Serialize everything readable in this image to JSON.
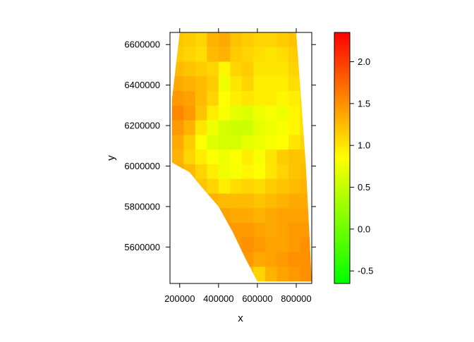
{
  "chart_data": {
    "type": "heatmap",
    "title": "",
    "xlabel": "x",
    "ylabel": "y",
    "xlim": [
      150000,
      880000
    ],
    "ylim": [
      5420000,
      6660000
    ],
    "x_ticks": [
      200000,
      400000,
      600000,
      800000
    ],
    "x_tick_labels": [
      "200000",
      "400000",
      "600000",
      "800000"
    ],
    "y_ticks": [
      5600000,
      5800000,
      6000000,
      6200000,
      6400000,
      6600000
    ],
    "y_tick_labels": [
      "5600000",
      "5800000",
      "6000000",
      "6200000",
      "6400000",
      "6600000"
    ],
    "colorbar": {
      "range": [
        -0.65,
        2.35
      ],
      "ticks": [
        -0.5,
        0.0,
        0.5,
        1.0,
        1.5,
        2.0
      ],
      "tick_labels": [
        "-0.5",
        "0.0",
        "0.5",
        "1.0",
        "1.5",
        "2.0"
      ],
      "colors": [
        "#00ff00",
        "#ffff00",
        "#ff0000"
      ]
    },
    "region_outline": [
      [
        200000,
        6660000
      ],
      [
        800000,
        6660000
      ],
      [
        850000,
        6000000
      ],
      [
        880000,
        5430000
      ],
      [
        600000,
        5430000
      ],
      [
        540000,
        5540000
      ],
      [
        470000,
        5680000
      ],
      [
        400000,
        5800000
      ],
      [
        310000,
        5900000
      ],
      [
        250000,
        5970000
      ],
      [
        155000,
        6020000
      ],
      [
        160000,
        6330000
      ]
    ],
    "grid": {
      "x_start": 160000,
      "x_end": 880000,
      "y_start": 5430000,
      "y_end": 6660000,
      "columns": 12,
      "rows": 17,
      "values": [
        [
          1.2,
          1.15,
          1.1,
          1.3,
          1.35,
          1.2,
          1.15,
          1.1,
          1.1,
          1.15,
          1.2,
          1.2
        ],
        [
          1.15,
          1.1,
          1.05,
          1.25,
          1.3,
          1.15,
          1.1,
          1.05,
          1.0,
          1.05,
          1.15,
          1.2
        ],
        [
          1.25,
          1.2,
          1.15,
          1.1,
          0.9,
          1.1,
          1.15,
          1.0,
          1.0,
          1.0,
          1.1,
          1.15
        ],
        [
          1.35,
          1.3,
          1.25,
          1.15,
          0.75,
          1.0,
          1.1,
          0.95,
          0.95,
          0.95,
          1.05,
          1.1
        ],
        [
          1.45,
          1.4,
          1.25,
          1.1,
          0.85,
          0.95,
          1.0,
          0.95,
          0.95,
          0.9,
          0.95,
          1.1
        ],
        [
          1.55,
          1.45,
          1.2,
          0.95,
          0.8,
          0.7,
          0.65,
          0.75,
          0.8,
          0.75,
          0.9,
          1.05
        ],
        [
          1.45,
          1.3,
          1.0,
          0.75,
          0.6,
          0.55,
          0.55,
          0.7,
          0.75,
          0.8,
          0.9,
          1.05
        ],
        [
          1.35,
          1.15,
          0.85,
          0.65,
          0.6,
          0.6,
          0.7,
          0.75,
          0.8,
          0.85,
          1.0,
          1.1
        ],
        [
          1.3,
          1.1,
          0.95,
          0.85,
          0.75,
          0.85,
          0.95,
          0.8,
          1.0,
          1.15,
          1.2,
          1.2
        ],
        [
          1.35,
          1.25,
          1.1,
          0.95,
          0.75,
          0.8,
          0.9,
          0.85,
          1.0,
          1.1,
          1.2,
          1.25
        ],
        [
          1.4,
          1.3,
          1.2,
          1.1,
          0.95,
          1.05,
          1.1,
          1.05,
          1.15,
          1.2,
          1.25,
          1.3
        ],
        [
          1.45,
          1.4,
          1.35,
          1.3,
          1.25,
          1.25,
          1.25,
          1.2,
          1.25,
          1.3,
          1.35,
          1.35
        ],
        [
          1.5,
          1.45,
          1.4,
          1.4,
          1.4,
          1.35,
          1.35,
          1.3,
          1.35,
          1.4,
          1.4,
          1.4
        ],
        [
          1.55,
          1.5,
          1.45,
          1.45,
          1.45,
          1.45,
          1.45,
          1.4,
          1.35,
          1.4,
          1.45,
          1.45
        ],
        [
          1.6,
          1.55,
          1.5,
          1.5,
          1.5,
          1.45,
          1.5,
          1.45,
          1.4,
          1.4,
          1.45,
          1.5
        ],
        [
          1.6,
          1.55,
          1.5,
          1.5,
          1.55,
          1.5,
          1.45,
          1.35,
          1.4,
          1.45,
          1.5,
          1.5
        ],
        [
          1.6,
          1.55,
          1.5,
          1.5,
          1.5,
          1.45,
          1.25,
          1.1,
          1.3,
          1.4,
          1.45,
          1.5
        ]
      ]
    }
  }
}
